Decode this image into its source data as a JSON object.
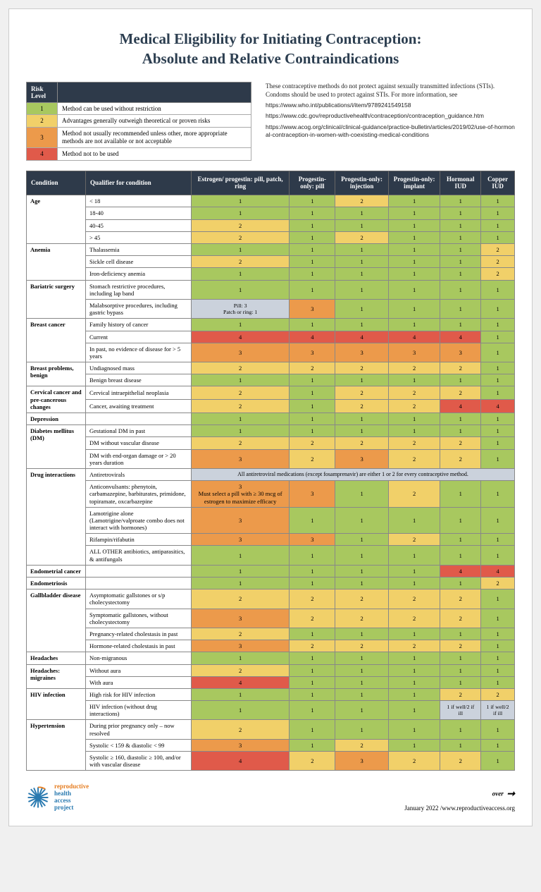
{
  "title_line1": "Medical Eligibility for Initiating Contraception:",
  "title_line2": "Absolute and Relative Contraindications",
  "risk_levels": {
    "header": "Risk Level",
    "rows": [
      {
        "n": "1",
        "desc": "Method can be used without restriction",
        "color": "#a8c85f"
      },
      {
        "n": "2",
        "desc": "Advantages generally outweigh theoretical or proven risks",
        "color": "#f1d069"
      },
      {
        "n": "3",
        "desc": "Method not usually recommended unless other, more appropriate methods are not available or not acceptable",
        "color": "#ec9a4b"
      },
      {
        "n": "4",
        "desc": "Method not to be used",
        "color": "#e05a4a"
      }
    ]
  },
  "note_intro": "These contraceptive methods do not protect against sexually transmitted infections (STIs). Condoms should be used to protect against STIs. For more information, see",
  "note_urls": [
    "https://www.who.int/publications/i/item/9789241549158",
    "https://www.cdc.gov/reproductivehealth/contraception/contraception_guidance.htm",
    "https://www.acog.org/clinical/clinical-guidance/practice-bulletin/articles/2019/02/use-of-hormonal-contraception-in-women-with-coexisting-medical-conditions"
  ],
  "columns": [
    "Condition",
    "Qualifier for condition",
    "Estrogen/ progestin: pill, patch, ring",
    "Progestin-only: pill",
    "Progestin-only: injection",
    "Progestin-only: implant",
    "Hormonal IUD",
    "Copper IUD"
  ],
  "groups": [
    {
      "cond": "Age",
      "rows": [
        {
          "q": "< 18",
          "v": [
            "1",
            "1",
            "2",
            "1",
            "1",
            "1"
          ]
        },
        {
          "q": "18-40",
          "v": [
            "1",
            "1",
            "1",
            "1",
            "1",
            "1"
          ]
        },
        {
          "q": "40-45",
          "v": [
            "2",
            "1",
            "1",
            "1",
            "1",
            "1"
          ]
        },
        {
          "q": "> 45",
          "v": [
            "2",
            "1",
            "2",
            "1",
            "1",
            "1"
          ]
        }
      ]
    },
    {
      "cond": "Anemia",
      "rows": [
        {
          "q": "Thalassemia",
          "v": [
            "1",
            "1",
            "1",
            "1",
            "1",
            "2"
          ]
        },
        {
          "q": "Sickle cell disease",
          "v": [
            "2",
            "1",
            "1",
            "1",
            "1",
            "2"
          ]
        },
        {
          "q": "Iron-deficiency anemia",
          "v": [
            "1",
            "1",
            "1",
            "1",
            "1",
            "2"
          ]
        }
      ]
    },
    {
      "cond": "Bariatric surgery",
      "rows": [
        {
          "q": "Stomach restrictive procedures, including lap band",
          "v": [
            "1",
            "1",
            "1",
            "1",
            "1",
            "1"
          ]
        },
        {
          "q": "Malabsorptive procedures, including gastric bypass",
          "v": [
            {
              "t": "Pill: 3\nPatch or ring: 1",
              "c": "G"
            },
            "3",
            "1",
            "1",
            "1",
            "1"
          ]
        }
      ]
    },
    {
      "cond": "Breast cancer",
      "rows": [
        {
          "q": "Family history of cancer",
          "v": [
            "1",
            "1",
            "1",
            "1",
            "1",
            "1"
          ]
        },
        {
          "q": "Current",
          "v": [
            "4",
            "4",
            "4",
            "4",
            "4",
            "1"
          ]
        },
        {
          "q": "In past, no evidence of disease for > 5 years",
          "v": [
            "3",
            "3",
            "3",
            "3",
            "3",
            "1"
          ]
        }
      ]
    },
    {
      "cond": "Breast problems, benign",
      "rows": [
        {
          "q": "Undiagnosed mass",
          "v": [
            "2",
            "2",
            "2",
            "2",
            "2",
            "1"
          ]
        },
        {
          "q": "Benign breast disease",
          "v": [
            "1",
            "1",
            "1",
            "1",
            "1",
            "1"
          ]
        }
      ]
    },
    {
      "cond": "Cervical cancer and pre-cancerous changes",
      "rows": [
        {
          "q": "Cervical intraepithelial neoplasia",
          "v": [
            "2",
            "1",
            "2",
            "2",
            "2",
            "1"
          ]
        },
        {
          "q": "Cancer, awaiting treatment",
          "v": [
            "2",
            "1",
            "2",
            "2",
            "4",
            "4"
          ]
        }
      ]
    },
    {
      "cond": "Depression",
      "rows": [
        {
          "q": "",
          "v": [
            "1",
            "1",
            "1",
            "1",
            "1",
            "1"
          ]
        }
      ]
    },
    {
      "cond": "Diabetes mellitus (DM)",
      "rows": [
        {
          "q": "Gestational DM in past",
          "v": [
            "1",
            "1",
            "1",
            "1",
            "1",
            "1"
          ]
        },
        {
          "q": "DM without vascular disease",
          "v": [
            "2",
            "2",
            "2",
            "2",
            "2",
            "1"
          ]
        },
        {
          "q": "DM with end-organ damage or > 20 years duration",
          "v": [
            "3",
            "2",
            "3",
            "2",
            "2",
            "1"
          ]
        }
      ]
    },
    {
      "cond": "Drug interactions",
      "rows": [
        {
          "q": "Antiretrovirals",
          "span": "All antiretroviral medications (except fosamprenavir) are either 1 or 2 for every contraceptive method."
        },
        {
          "q": "Anticonvulsants: phenytoin, carbamazepine, barbiturates, primidone, topiramate, oxcarbazepine",
          "v": [
            {
              "t": "3\nMust select a pill with ≥ 30 mcg of estrogen to maximize efficacy",
              "c": "3"
            },
            "3",
            "1",
            "2",
            "1",
            "1"
          ]
        },
        {
          "q": "Lamotrigine alone (Lamotrigine/valproate combo does not interact with hormones)",
          "v": [
            "3",
            "1",
            "1",
            "1",
            "1",
            "1"
          ]
        },
        {
          "q": "Rifampin/rifabutin",
          "v": [
            "3",
            "3",
            "1",
            "2",
            "1",
            "1"
          ]
        },
        {
          "q": "ALL OTHER antibiotics, antiparasitics, & antifungals",
          "v": [
            "1",
            "1",
            "1",
            "1",
            "1",
            "1"
          ]
        }
      ]
    },
    {
      "cond": "Endometrial cancer",
      "rows": [
        {
          "q": "",
          "v": [
            "1",
            "1",
            "1",
            "1",
            "4",
            "4"
          ]
        }
      ]
    },
    {
      "cond": "Endometriosis",
      "rows": [
        {
          "q": "",
          "v": [
            "1",
            "1",
            "1",
            "1",
            "1",
            "2"
          ]
        }
      ]
    },
    {
      "cond": "Gallbladder disease",
      "rows": [
        {
          "q": "Asymptomatic gallstones or s/p cholecystectomy",
          "v": [
            "2",
            "2",
            "2",
            "2",
            "2",
            "1"
          ]
        },
        {
          "q": "Symptomatic gallstones, without cholecystectomy",
          "v": [
            "3",
            "2",
            "2",
            "2",
            "2",
            "1"
          ]
        },
        {
          "q": "Pregnancy-related cholestasis in past",
          "v": [
            "2",
            "1",
            "1",
            "1",
            "1",
            "1"
          ]
        },
        {
          "q": "Hormone-related cholestasis in past",
          "v": [
            "3",
            "2",
            "2",
            "2",
            "2",
            "1"
          ]
        }
      ]
    },
    {
      "cond": "Headaches",
      "rows": [
        {
          "q": "Non-migranous",
          "v": [
            "1",
            "1",
            "1",
            "1",
            "1",
            "1"
          ]
        }
      ]
    },
    {
      "cond": "Headaches: migraines",
      "rows": [
        {
          "q": "Without aura",
          "v": [
            "2",
            "1",
            "1",
            "1",
            "1",
            "1"
          ]
        },
        {
          "q": "With aura",
          "v": [
            "4",
            "1",
            "1",
            "1",
            "1",
            "1"
          ]
        }
      ]
    },
    {
      "cond": "HIV infection",
      "rows": [
        {
          "q": "High risk for HIV infection",
          "v": [
            "1",
            "1",
            "1",
            "1",
            "2",
            "2"
          ]
        },
        {
          "q": "HIV infection (without drug interactions)",
          "v": [
            "1",
            "1",
            "1",
            "1",
            {
              "t": "1 if well/2 if ill",
              "c": "G"
            },
            {
              "t": "1 if well/2 if ill",
              "c": "G"
            }
          ]
        }
      ]
    },
    {
      "cond": "Hypertension",
      "rows": [
        {
          "q": "During prior pregnancy only – now resolved",
          "v": [
            "2",
            "1",
            "1",
            "1",
            "1",
            "1"
          ]
        },
        {
          "q": "Systolic < 159 & diastolic < 99",
          "v": [
            "3",
            "1",
            "2",
            "1",
            "1",
            "1"
          ]
        },
        {
          "q": "Systolic ≥ 160, diastolic ≥ 100, and/or with vascular disease",
          "v": [
            "4",
            "2",
            "3",
            "2",
            "2",
            "1"
          ]
        }
      ]
    }
  ],
  "footer": {
    "logo_lines": [
      "reproductive",
      "health",
      "access",
      "project"
    ],
    "over": "over",
    "date_url": "January 2022 /www.reproductiveaccess.org"
  },
  "colors": {
    "header_bg": "#2e3a4a",
    "level1": "#a8c85f",
    "level2": "#f1d069",
    "level3": "#ec9a4b",
    "level4": "#e05a4a",
    "grey": "#cbd2dc"
  }
}
